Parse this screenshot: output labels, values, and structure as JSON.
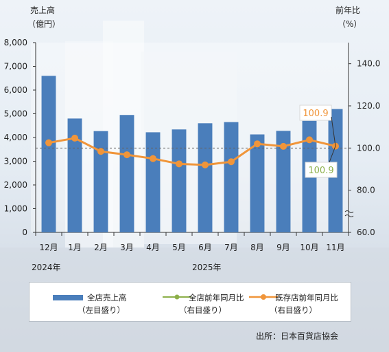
{
  "left_axis": {
    "title_line1": "売上高",
    "title_line2": "（億円）"
  },
  "right_axis": {
    "title_line1": "前年比",
    "title_line2": "（%）"
  },
  "year_labels": [
    "2024年",
    "2025年"
  ],
  "source": "出所：日本百貨店協会",
  "legend": [
    {
      "label": "全店売上高",
      "sub": "（左目盛り）",
      "color": "#4a7ebb"
    },
    {
      "label": "全店前年同月比",
      "sub": "（右目盛り）",
      "color": "#8db04a"
    },
    {
      "label": "既存店前年同月比",
      "sub": "（右目盛り）",
      "color": "#f0953a"
    }
  ],
  "annotations": {
    "existing_last": "100.9",
    "all_last": "100.9"
  },
  "chart_data": {
    "type": "bar",
    "categories": [
      "12月",
      "1月",
      "2月",
      "3月",
      "4月",
      "5月",
      "6月",
      "7月",
      "8月",
      "9月",
      "10月",
      "11月"
    ],
    "series": [
      {
        "name": "全店売上高",
        "axis": "left",
        "type": "bar",
        "color": "#4a7ebb",
        "values": [
          6600,
          4800,
          4270,
          4950,
          4220,
          4340,
          4600,
          4650,
          4130,
          4280,
          4700,
          5200
        ]
      },
      {
        "name": "全店前年同月比",
        "axis": "right",
        "type": "line",
        "color": "#8db04a",
        "values": [
          102.5,
          104.7,
          98.4,
          96.8,
          95.0,
          92.5,
          92.0,
          93.5,
          102.0,
          100.8,
          103.9,
          100.9
        ]
      },
      {
        "name": "既存店前年同月比",
        "axis": "right",
        "type": "line",
        "color": "#f0953a",
        "values": [
          102.5,
          104.7,
          98.4,
          96.8,
          95.0,
          92.5,
          92.0,
          93.5,
          102.0,
          100.8,
          103.9,
          100.9
        ]
      }
    ],
    "left_ylim": [
      0,
      8000
    ],
    "left_ticks": [
      "0",
      "1,000",
      "2,000",
      "3,000",
      "4,000",
      "5,000",
      "6,000",
      "7,000",
      "8,000"
    ],
    "right_ylim": [
      60,
      150
    ],
    "right_ticks": [
      "60.0",
      "80.0",
      "100.0",
      "120.0",
      "140.0"
    ],
    "reference_line": 100,
    "grid": false,
    "legend_position": "bottom"
  }
}
